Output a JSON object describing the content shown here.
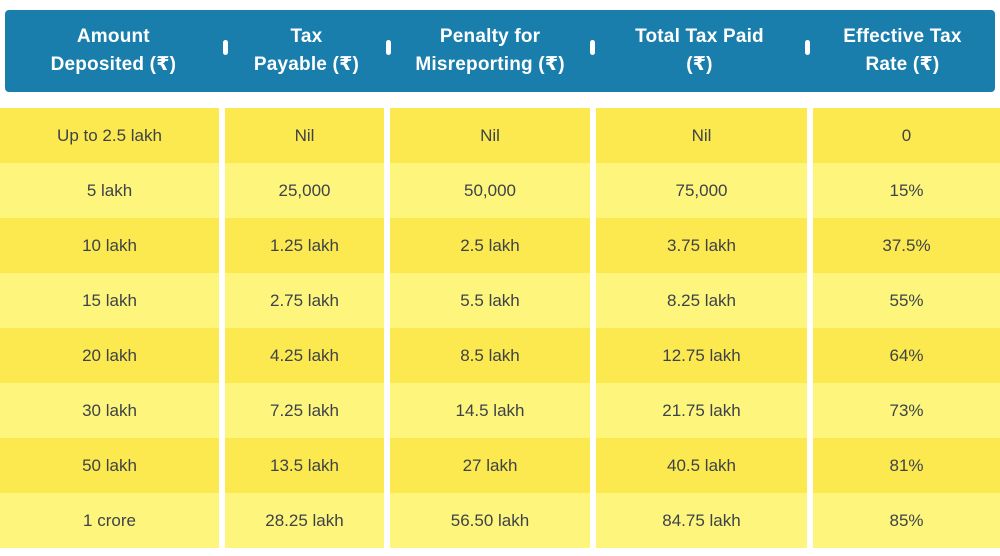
{
  "chart_data": {
    "type": "table",
    "title": "",
    "columns": [
      "Amount Deposited (₹)",
      "Tax Payable (₹)",
      "Penalty for Misreporting (₹)",
      "Total Tax Paid (₹)",
      "Effective Tax Rate (₹)"
    ],
    "rows": [
      [
        "Up to 2.5 lakh",
        "Nil",
        "Nil",
        "Nil",
        "0"
      ],
      [
        "5 lakh",
        "25,000",
        "50,000",
        "75,000",
        "15%"
      ],
      [
        "10 lakh",
        "1.25 lakh",
        "2.5 lakh",
        "3.75 lakh",
        "37.5%"
      ],
      [
        "15 lakh",
        "2.75 lakh",
        "5.5 lakh",
        "8.25 lakh",
        "55%"
      ],
      [
        "20 lakh",
        "4.25 lakh",
        "8.5 lakh",
        "12.75 lakh",
        "64%"
      ],
      [
        "30 lakh",
        "7.25 lakh",
        "14.5 lakh",
        "21.75 lakh",
        "73%"
      ],
      [
        "50 lakh",
        "13.5 lakh",
        "27 lakh",
        "40.5 lakh",
        "81%"
      ],
      [
        "1 crore",
        "28.25 lakh",
        "56.50 lakh",
        "84.75 lakh",
        "85%"
      ]
    ]
  },
  "header": {
    "cells": [
      {
        "label": "Amount\nDeposited (₹)"
      },
      {
        "label": "Tax\nPayable (₹)"
      },
      {
        "label": "Penalty for\nMisreporting (₹)"
      },
      {
        "label": "Total Tax Paid\n(₹)"
      },
      {
        "label": "Effective Tax\nRate (₹)"
      }
    ]
  },
  "colors": {
    "header_bg": "#1A7EAD",
    "header_text": "#FFFFFF",
    "row_dark": "#FCE94F",
    "row_light": "#FDF57C",
    "text_dark": "#3D4349"
  }
}
